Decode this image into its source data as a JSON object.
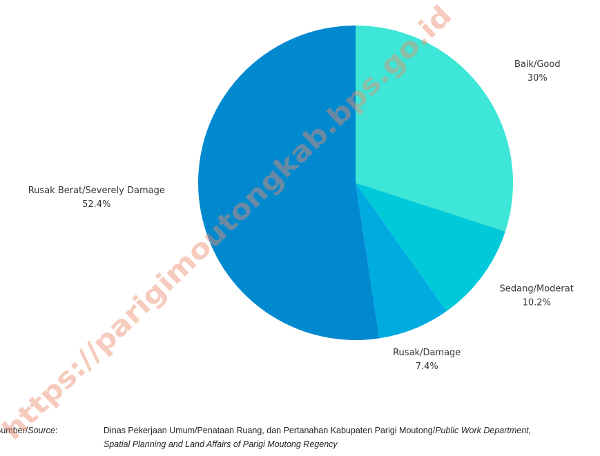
{
  "chart_data": {
    "type": "pie",
    "categories": [
      "Baik/Good",
      "Sedang/Moderat",
      "Rusak/Damage",
      "Rusak Berat/Severely Damage"
    ],
    "values": [
      30,
      10.2,
      7.4,
      52.4
    ],
    "value_labels": [
      "30%",
      "10.2%",
      "7.4%",
      "52.4%"
    ],
    "colors": [
      "#3de6d6",
      "#00c9d9",
      "#00abe0",
      "#0189cf"
    ]
  },
  "source": {
    "label": [
      "Sumber/",
      "Source",
      ":"
    ],
    "line1": "Dinas Pekerjaan Umum/Penataan Ruang, dan Pertanahan Kabupaten Parigi Moutong/",
    "line1_italic": "Public Work Department,",
    "line2_italic": "Spatial Planning and Land Affairs of Parigi Moutong Regency"
  },
  "watermark": "https://parigimoutongkab.bps.go.id"
}
